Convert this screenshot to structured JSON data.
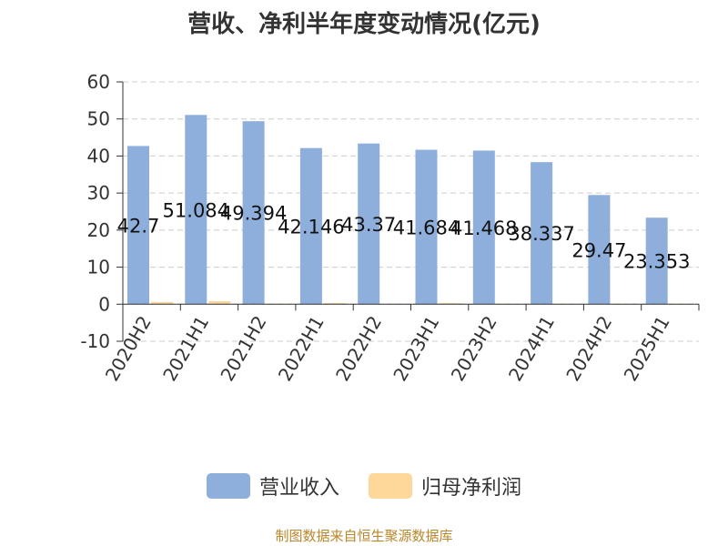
{
  "chart_data": {
    "type": "bar",
    "title": "营收、净利半年度变动情况(亿元)",
    "categories": [
      "2020H2",
      "2021H1",
      "2021H2",
      "2022H1",
      "2022H2",
      "2023H1",
      "2023H2",
      "2024H1",
      "2024H2",
      "2025H1"
    ],
    "series": [
      {
        "name": "营业收入",
        "color": "#8eaedb",
        "values": [
          42.7,
          51.084,
          49.394,
          42.146,
          43.37,
          41.684,
          41.468,
          38.337,
          29.47,
          23.353
        ],
        "labels": [
          "42.7",
          "51.084",
          "49.394",
          "42.146",
          "43.37",
          "41.684",
          "41.468",
          "38.337",
          "29.47",
          "23.353"
        ]
      },
      {
        "name": "归母净利润",
        "color": "#fdd89a",
        "values": [
          0.6,
          0.8,
          0.1,
          0.3,
          0.1,
          0.3,
          0.1,
          0.1,
          0.1,
          0.1
        ]
      }
    ],
    "ylim": [
      -10,
      60
    ],
    "yticks": [
      -10,
      0,
      10,
      20,
      30,
      40,
      50,
      60
    ],
    "grid": true,
    "legend_position": "bottom"
  },
  "source": "制图数据来自恒生聚源数据库"
}
